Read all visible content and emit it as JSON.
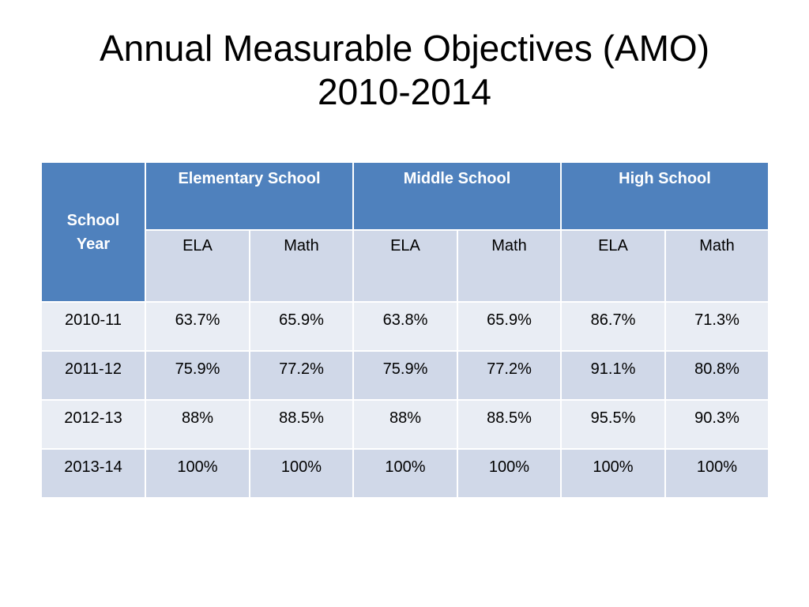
{
  "title": {
    "line1": "Annual Measurable Objectives (AMO)",
    "line2": "2010-2014"
  },
  "table": {
    "year_header": {
      "line1": "School",
      "line2": "Year"
    },
    "groups": [
      {
        "label": "Elementary School"
      },
      {
        "label": "Middle School"
      },
      {
        "label": "High School"
      }
    ],
    "subheaders": [
      "ELA",
      "Math",
      "ELA",
      "Math",
      "ELA",
      "Math"
    ],
    "rows": [
      {
        "year": "2010-11",
        "values": [
          "63.7%",
          "65.9%",
          "63.8%",
          "65.9%",
          "86.7%",
          "71.3%"
        ]
      },
      {
        "year": "2011-12",
        "values": [
          "75.9%",
          "77.2%",
          "75.9%",
          "77.2%",
          "91.1%",
          "80.8%"
        ]
      },
      {
        "year": "2012-13",
        "values": [
          "88%",
          "88.5%",
          "88%",
          "88.5%",
          "95.5%",
          "90.3%"
        ]
      },
      {
        "year": "2013-14",
        "values": [
          "100%",
          "100%",
          "100%",
          "100%",
          "100%",
          "100%"
        ]
      }
    ]
  },
  "colors": {
    "header_blue": "#4f81bd",
    "band_dark": "#d0d8e8",
    "band_light": "#e9edf4"
  }
}
